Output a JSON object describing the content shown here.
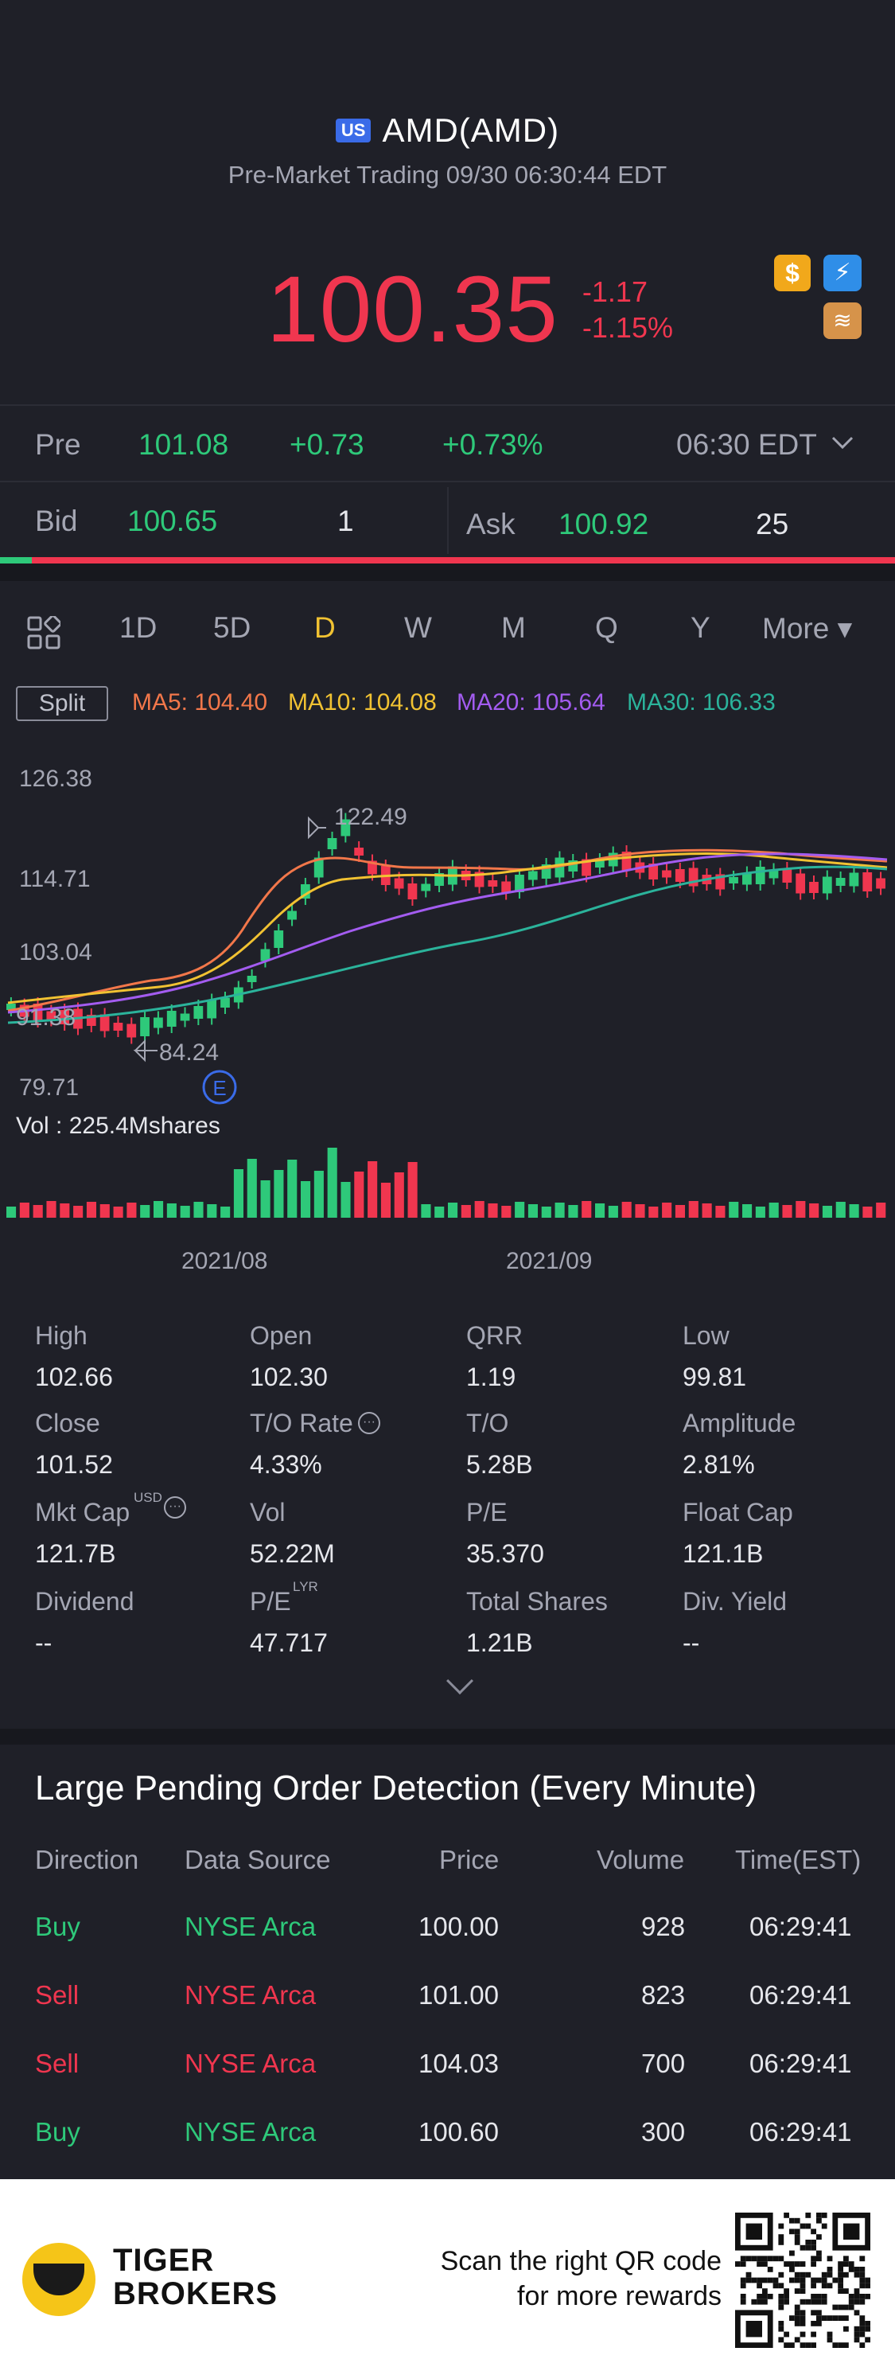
{
  "header": {
    "market_badge": "US",
    "ticker": "AMD(AMD)",
    "subtitle": "Pre-Market Trading 09/30 06:30:44 EDT",
    "price": "100.35",
    "change": "-1.17",
    "change_pct": "-1.15%",
    "icon_gold": "$",
    "icon_bolt": "⚡",
    "icon_stack": "≋"
  },
  "pre": {
    "label": "Pre",
    "price": "101.08",
    "change": "+0.73",
    "change_pct": "+0.73%",
    "time": "06:30 EDT"
  },
  "bidask": {
    "bid_label": "Bid",
    "bid_price": "100.65",
    "bid_size": "1",
    "ask_label": "Ask",
    "ask_price": "100.92",
    "ask_size": "25"
  },
  "tabs": {
    "items": [
      "1D",
      "5D",
      "D",
      "W",
      "M",
      "Q",
      "Y"
    ],
    "more": "More ▾",
    "active": "D"
  },
  "ma": {
    "split": "Split",
    "ma5": "MA5: 104.40",
    "ma10": "MA10: 104.08",
    "ma20": "MA20: 105.64",
    "ma30": "MA30: 106.33",
    "colors": {
      "ma5": "#f2774a",
      "ma10": "#f1c232",
      "ma20": "#a35cf0",
      "ma30": "#2bb39b"
    }
  },
  "chart_data": {
    "type": "candlestick",
    "y_ticks": [
      "126.38",
      "114.71",
      "103.04",
      "79.71"
    ],
    "x_ticks": [
      "2021/08",
      "2021/09"
    ],
    "high_annotation": "122.49",
    "low_annotation": "84.24",
    "left_annotation": "91.38",
    "event_marker": "E",
    "volume_label": "Vol  : 225.4Mshares",
    "ylim": [
      79.71,
      126.38
    ]
  },
  "stats": {
    "high_label": "High",
    "high": "102.66",
    "open_label": "Open",
    "open": "102.30",
    "qrr_label": "QRR",
    "qrr": "1.19",
    "low_label": "Low",
    "low": "99.81",
    "close_label": "Close",
    "close": "101.52",
    "to_rate_label": "T/O Rate",
    "to_rate": "4.33%",
    "to_label": "T/O",
    "to": "5.28B",
    "amplitude_label": "Amplitude",
    "amplitude": "2.81%",
    "mktcap_label": "Mkt Cap",
    "mktcap_sup": "USD",
    "mktcap": "121.7B",
    "vol_label": "Vol",
    "vol": "52.22M",
    "pe_label": "P/E",
    "pe": "35.370",
    "floatcap_label": "Float Cap",
    "floatcap": "121.1B",
    "dividend_label": "Dividend",
    "dividend": "--",
    "pe_lyr_label": "P/E",
    "pe_lyr_sup": "LYR",
    "pe_lyr": "47.717",
    "totalshares_label": "Total Shares",
    "totalshares": "1.21B",
    "divyield_label": "Div. Yield",
    "divyield": "--"
  },
  "orders": {
    "title": "Large Pending Order Detection (Every Minute)",
    "headers": {
      "direction": "Direction",
      "source": "Data Source",
      "price": "Price",
      "volume": "Volume",
      "time": "Time(EST)"
    },
    "rows": [
      {
        "direction": "Buy",
        "source": "NYSE Arca",
        "price": "100.00",
        "volume": "928",
        "time": "06:29:41"
      },
      {
        "direction": "Sell",
        "source": "NYSE Arca",
        "price": "101.00",
        "volume": "823",
        "time": "06:29:41"
      },
      {
        "direction": "Sell",
        "source": "NYSE Arca",
        "price": "104.03",
        "volume": "700",
        "time": "06:29:41"
      },
      {
        "direction": "Buy",
        "source": "NYSE Arca",
        "price": "100.60",
        "volume": "300",
        "time": "06:29:41"
      }
    ]
  },
  "footer": {
    "brand_line1": "TIGER",
    "brand_line2": "BROKERS",
    "scan_line1": "Scan the right QR code",
    "scan_line2": "for more rewards"
  }
}
